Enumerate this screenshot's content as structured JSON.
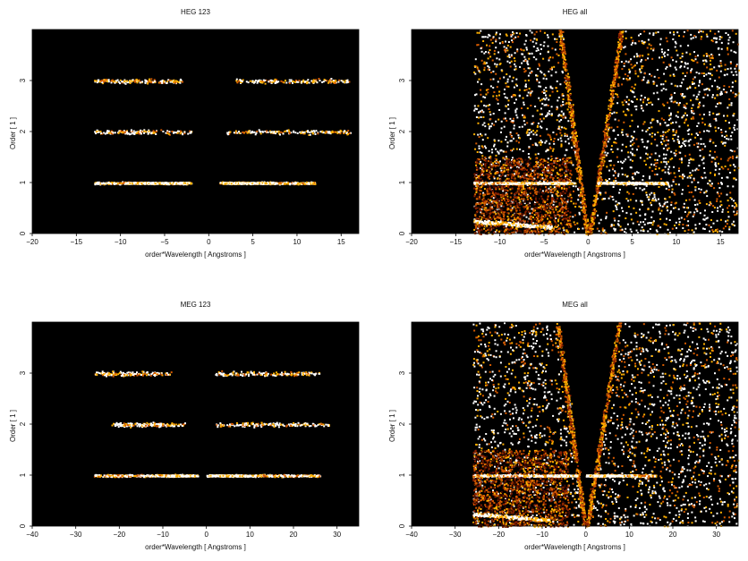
{
  "chart_data": [
    {
      "type": "heatmap",
      "title": "HEG 123",
      "xlabel": "order*Wavelength [ Angstroms ]",
      "ylabel": "Order [ 1 ]",
      "xlim": [
        -20,
        17
      ],
      "ylim": [
        0,
        4
      ],
      "xticks": [
        "−20",
        "−15",
        "−10",
        "−5",
        "0",
        "5",
        "10",
        "15"
      ],
      "xtick_values": [
        -20,
        -15,
        -10,
        -5,
        0,
        5,
        10,
        15
      ],
      "yticks": [
        "0",
        "1",
        "2",
        "3"
      ],
      "ytick_values": [
        0,
        1,
        2,
        3
      ],
      "bands": [
        {
          "order": 1,
          "x_ranges": [
            [
              -13,
              -2
            ],
            [
              1.2,
              12
            ]
          ],
          "core_ranges": [
            [
              -9.5,
              -2.5
            ],
            [
              1.5,
              7.5
            ]
          ],
          "density": "high"
        },
        {
          "order": 2,
          "x_ranges": [
            [
              -13,
              -2
            ],
            [
              2,
              16
            ]
          ],
          "density": "low"
        },
        {
          "order": 3,
          "x_ranges": [
            [
              -13,
              -3
            ],
            [
              3,
              16
            ]
          ],
          "density": "low"
        }
      ],
      "background": "#000000",
      "palette": [
        "#3d0a00",
        "#8a2000",
        "#d45a00",
        "#ffb000",
        "#ffffff"
      ]
    },
    {
      "type": "heatmap",
      "title": "HEG all",
      "xlabel": "order*Wavelength [ Angstroms ]",
      "ylabel": "Order [ 1 ]",
      "xlim": [
        -20,
        17
      ],
      "ylim": [
        0,
        4
      ],
      "xticks": [
        "−20",
        "−15",
        "−10",
        "−5",
        "0",
        "5",
        "10",
        "15"
      ],
      "xtick_values": [
        -20,
        -15,
        -10,
        -5,
        0,
        5,
        10,
        15
      ],
      "yticks": [
        "0",
        "1",
        "2",
        "3"
      ],
      "ytick_values": [
        0,
        1,
        2,
        3
      ],
      "coverage_x": [
        -13,
        17
      ],
      "bands": [
        {
          "order": 1,
          "x_ranges": [
            [
              -13,
              -2
            ],
            [
              1,
              9
            ]
          ],
          "core_ranges": [
            [
              -9.5,
              -1.5
            ],
            [
              1,
              8.5
            ]
          ],
          "density": "high"
        }
      ],
      "background": "#000000",
      "palette": [
        "#3d0a00",
        "#8a2000",
        "#d45a00",
        "#ffb000",
        "#ffffff"
      ]
    },
    {
      "type": "heatmap",
      "title": "MEG 123",
      "xlabel": "order*Wavelength [ Angstroms ]",
      "ylabel": "Order [ 1 ]",
      "xlim": [
        -40,
        35
      ],
      "ylim": [
        0,
        4
      ],
      "xticks": [
        "−40",
        "−30",
        "−20",
        "−10",
        "0",
        "10",
        "20",
        "30"
      ],
      "xtick_values": [
        -40,
        -30,
        -20,
        -10,
        0,
        10,
        20,
        30
      ],
      "yticks": [
        "0",
        "1",
        "2",
        "3"
      ],
      "ytick_values": [
        0,
        1,
        2,
        3
      ],
      "bands": [
        {
          "order": 1,
          "x_ranges": [
            [
              -26,
              -4
            ],
            [
              0,
              26
            ]
          ],
          "core_ranges": [
            [
              -9,
              -2
            ],
            [
              0.5,
              8.5
            ]
          ],
          "density": "high"
        },
        {
          "order": 2,
          "x_ranges": [
            [
              -22,
              -5
            ],
            [
              2,
              28
            ]
          ],
          "density": "low"
        },
        {
          "order": 3,
          "x_ranges": [
            [
              -26,
              -8
            ],
            [
              2,
              26
            ]
          ],
          "density": "low"
        }
      ],
      "background": "#000000",
      "palette": [
        "#3d0a00",
        "#8a2000",
        "#d45a00",
        "#ffb000",
        "#ffffff"
      ]
    },
    {
      "type": "heatmap",
      "title": "MEG all",
      "xlabel": "order*Wavelength [ Angstroms ]",
      "ylabel": "Order [ 1 ]",
      "xlim": [
        -40,
        35
      ],
      "ylim": [
        0,
        4
      ],
      "xticks": [
        "−40",
        "−30",
        "−20",
        "−10",
        "0",
        "10",
        "20",
        "30"
      ],
      "xtick_values": [
        -40,
        -30,
        -20,
        -10,
        0,
        10,
        20,
        30
      ],
      "yticks": [
        "0",
        "1",
        "2",
        "3"
      ],
      "ytick_values": [
        0,
        1,
        2,
        3
      ],
      "coverage_x": [
        -26,
        35
      ],
      "bands": [
        {
          "order": 1,
          "x_ranges": [
            [
              -26,
              -4
            ],
            [
              0,
              16
            ]
          ],
          "core_ranges": [
            [
              -9,
              -2
            ],
            [
              0,
              9
            ]
          ],
          "density": "high"
        }
      ],
      "background": "#000000",
      "palette": [
        "#3d0a00",
        "#8a2000",
        "#d45a00",
        "#ffb000",
        "#ffffff"
      ]
    }
  ]
}
